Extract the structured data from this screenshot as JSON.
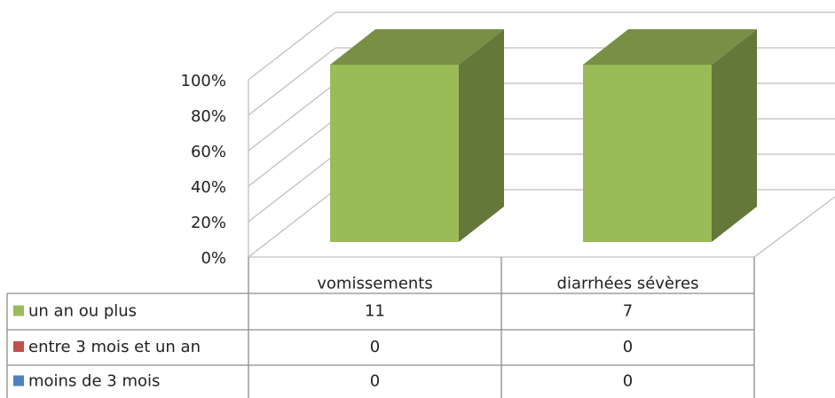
{
  "chart_data": {
    "type": "bar3d",
    "stacking": "percent",
    "categories": [
      "vomissements",
      "diarrhées sévères"
    ],
    "series": [
      {
        "name": "un an ou plus",
        "color": "#9bbb59",
        "values": [
          11,
          7
        ]
      },
      {
        "name": "entre 3 mois et un an",
        "color": "#c0504d",
        "values": [
          0,
          0
        ]
      },
      {
        "name": "moins de 3 mois",
        "color": "#4f81bd",
        "values": [
          0,
          0
        ]
      }
    ],
    "ylim": [
      0,
      100
    ],
    "yticks": [
      {
        "value": 0,
        "label": "0%"
      },
      {
        "value": 20,
        "label": "20%"
      },
      {
        "value": 40,
        "label": "40%"
      },
      {
        "value": 60,
        "label": "60%"
      },
      {
        "value": 80,
        "label": "80%"
      },
      {
        "value": 100,
        "label": "100%"
      }
    ],
    "grid": true,
    "data_table": true
  }
}
